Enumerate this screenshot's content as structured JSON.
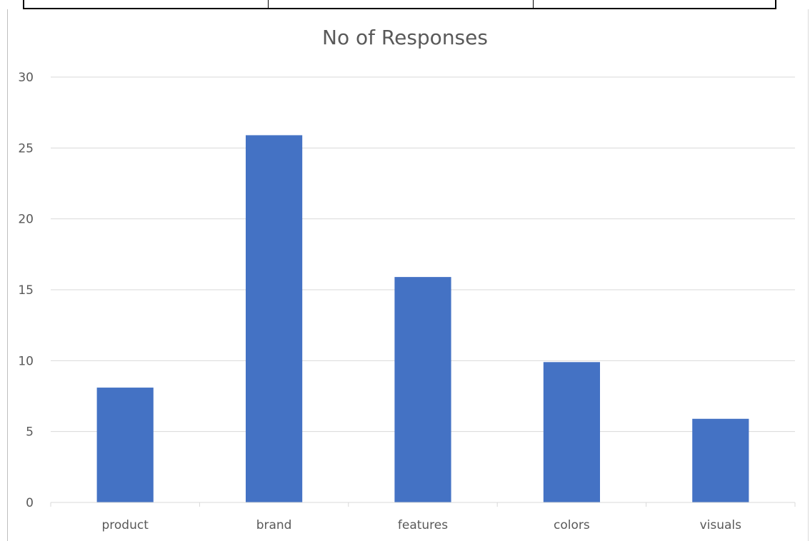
{
  "chart_data": {
    "type": "bar",
    "title": "No of Responses",
    "xlabel": "",
    "ylabel": "",
    "categories": [
      "product",
      "brand",
      "features",
      "colors",
      "visuals"
    ],
    "values": [
      8.1,
      25.9,
      15.9,
      9.9,
      5.9
    ],
    "ylim": [
      0,
      30
    ],
    "yticks": [
      0,
      5,
      10,
      15,
      20,
      25,
      30
    ],
    "grid": true,
    "legend": "none",
    "bar_color": "#4472c4",
    "grid_color": "#d9d9d9",
    "text_color": "#595959"
  }
}
